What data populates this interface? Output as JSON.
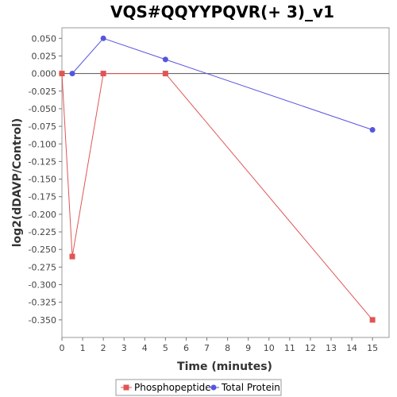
{
  "chart_data": {
    "type": "line",
    "title": "VQS#QQYYPQVR(+ 3)_v1",
    "xlabel": "Time (minutes)",
    "ylabel": "log2(dDAVP/Control)",
    "xlim": [
      0,
      15.8
    ],
    "ylim": [
      -0.375,
      0.065
    ],
    "x_ticks": [
      0,
      1,
      2,
      3,
      4,
      5,
      6,
      7,
      8,
      9,
      10,
      11,
      12,
      13,
      14,
      15
    ],
    "y_ticks": [
      0.05,
      0.025,
      0.0,
      -0.025,
      -0.05,
      -0.075,
      -0.1,
      -0.125,
      -0.15,
      -0.175,
      -0.2,
      -0.225,
      -0.25,
      -0.275,
      -0.3,
      -0.325,
      -0.35
    ],
    "y_tick_labels": [
      "0.050",
      "0.025",
      "0.000",
      "-0.025",
      "-0.050",
      "-0.075",
      "-0.100",
      "-0.125",
      "-0.150",
      "-0.175",
      "-0.200",
      "-0.225",
      "-0.250",
      "-0.275",
      "-0.300",
      "-0.325",
      "-0.350"
    ],
    "zero_line": true,
    "grid": false,
    "legend_position": "bottom",
    "series": [
      {
        "name": "Phosphopeptide",
        "color": "#e05555",
        "marker": "square",
        "x": [
          0,
          0.5,
          2,
          5,
          15
        ],
        "y": [
          0.0,
          -0.26,
          0.0,
          0.0,
          -0.35
        ]
      },
      {
        "name": "Total Protein",
        "color": "#5555e0",
        "marker": "circle",
        "x": [
          0.5,
          2,
          5,
          15
        ],
        "y": [
          0.0,
          0.05,
          0.02,
          -0.08
        ]
      }
    ]
  }
}
